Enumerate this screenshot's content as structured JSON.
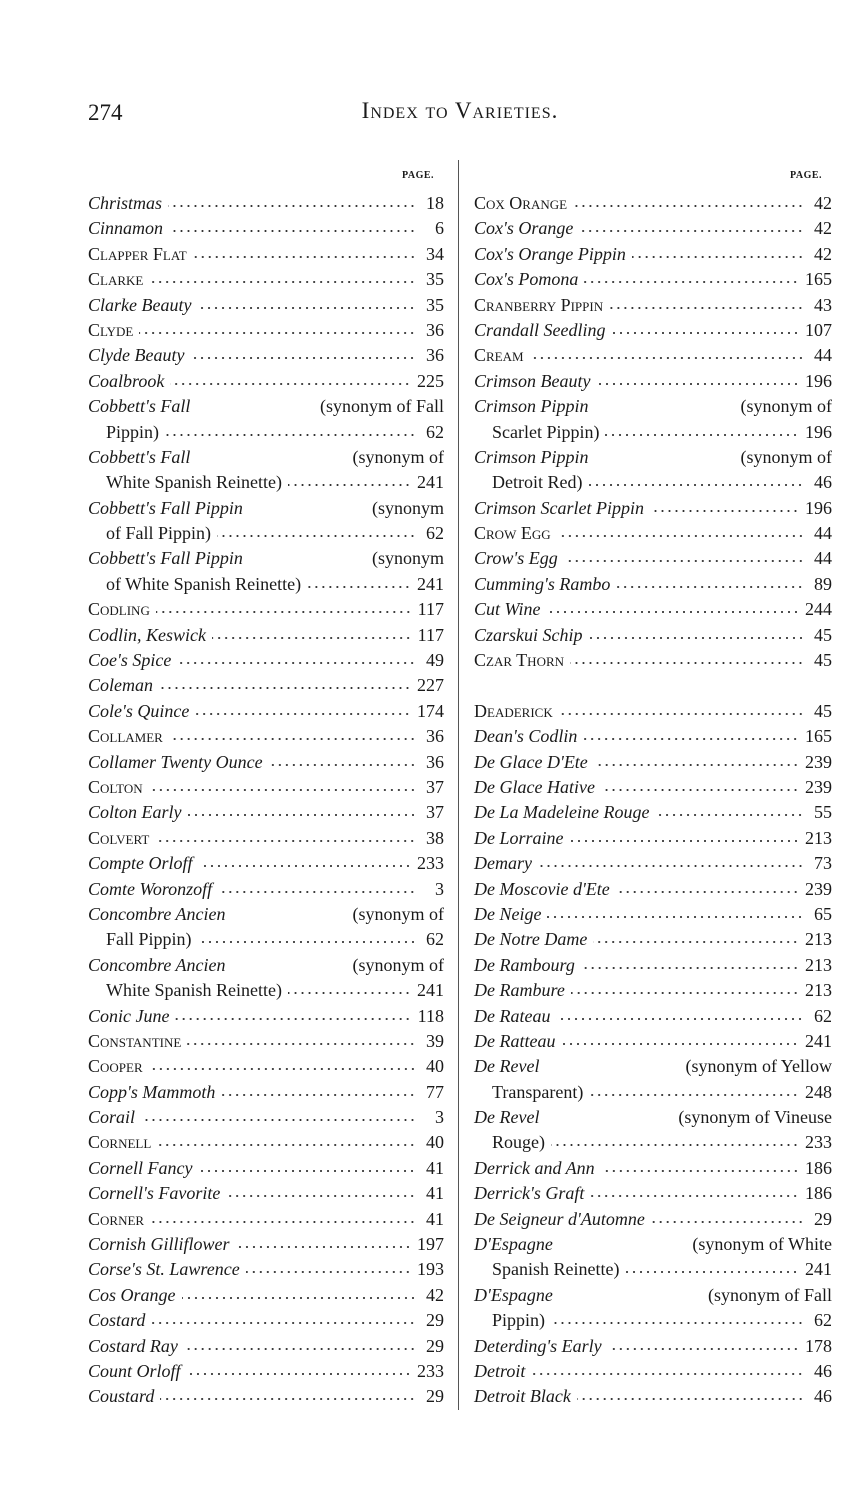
{
  "header": {
    "page_number": "274",
    "title": "Index to Varieties.",
    "page_label": "PAGE."
  },
  "columns": [
    {
      "groups": [
        [
          {
            "name": "Christmas",
            "style": "italic",
            "page": "18"
          },
          {
            "name": "Cinnamon",
            "style": "italic",
            "page": "6"
          },
          {
            "name": "Clapper Flat",
            "style": "caps",
            "page": "34"
          },
          {
            "name": "Clarke",
            "style": "caps",
            "page": "35"
          },
          {
            "name": "Clarke Beauty",
            "style": "italic",
            "page": "35"
          },
          {
            "name": "Clyde",
            "style": "caps",
            "page": "36"
          },
          {
            "name": "Clyde Beauty",
            "style": "italic",
            "page": "36"
          },
          {
            "name": "Coalbrook",
            "style": "italic",
            "page": "225"
          },
          {
            "name": "Cobbett's Fall",
            "style": "italic",
            "note": "(synonym of Fall",
            "cont": "Pippin)",
            "page": "62"
          },
          {
            "name": "Cobbett's Fall",
            "style": "italic",
            "note": "(synonym of",
            "cont": "White Spanish Reinette)",
            "page": "241"
          },
          {
            "name": "Cobbett's Fall Pippin",
            "style": "italic",
            "note": "(synonym",
            "cont": "of Fall Pippin)",
            "page": "62"
          },
          {
            "name": "Cobbett's Fall Pippin",
            "style": "italic",
            "note": "(synonym",
            "cont": "of White Spanish Reinette)",
            "page": "241"
          },
          {
            "name": "Codling",
            "style": "caps",
            "page": "117"
          },
          {
            "name": "Codlin, Keswick",
            "style": "italic",
            "page": "117"
          },
          {
            "name": "Coe's Spice",
            "style": "italic",
            "page": "49"
          },
          {
            "name": "Coleman",
            "style": "italic",
            "page": "227"
          },
          {
            "name": "Cole's Quince",
            "style": "italic",
            "page": "174"
          },
          {
            "name": "Collamer",
            "style": "caps",
            "page": "36"
          },
          {
            "name": "Collamer Twenty Ounce",
            "style": "italic",
            "page": "36"
          },
          {
            "name": "Colton",
            "style": "caps",
            "page": "37"
          },
          {
            "name": "Colton Early",
            "style": "italic",
            "page": "37"
          },
          {
            "name": "Colvert",
            "style": "caps",
            "page": "38"
          },
          {
            "name": "Compte Orloff",
            "style": "italic",
            "page": "233"
          },
          {
            "name": "Comte Woronzoff",
            "style": "italic",
            "page": "3"
          },
          {
            "name": "Concombre Ancien",
            "style": "italic",
            "note": "(synonym of",
            "cont": "Fall Pippin)",
            "page": "62"
          },
          {
            "name": "Concombre Ancien",
            "style": "italic",
            "note": "(synonym of",
            "cont": "White Spanish Reinette)",
            "page": "241"
          },
          {
            "name": "Conic June",
            "style": "italic",
            "page": "118"
          },
          {
            "name": "Constantine",
            "style": "caps",
            "page": "39"
          },
          {
            "name": "Cooper",
            "style": "caps",
            "page": "40"
          },
          {
            "name": "Copp's Mammoth",
            "style": "italic",
            "page": "77"
          },
          {
            "name": "Corail",
            "style": "italic",
            "page": "3"
          },
          {
            "name": "Cornell",
            "style": "caps",
            "page": "40"
          },
          {
            "name": "Cornell Fancy",
            "style": "italic",
            "page": "41"
          },
          {
            "name": "Cornell's Favorite",
            "style": "italic",
            "page": "41"
          },
          {
            "name": "Corner",
            "style": "caps",
            "page": "41"
          },
          {
            "name": "Cornish Gilliflower",
            "style": "italic",
            "page": "197"
          },
          {
            "name": "Corse's St. Lawrence",
            "style": "italic",
            "page": "193"
          },
          {
            "name": "Cos Orange",
            "style": "italic",
            "page": "42"
          },
          {
            "name": "Costard",
            "style": "italic",
            "page": "29"
          },
          {
            "name": "Costard Ray",
            "style": "italic",
            "page": "29"
          },
          {
            "name": "Count Orloff",
            "style": "italic",
            "page": "233"
          },
          {
            "name": "Coustard",
            "style": "italic",
            "page": "29"
          }
        ]
      ]
    },
    {
      "groups": [
        [
          {
            "name": "Cox Orange",
            "style": "caps",
            "page": "42"
          },
          {
            "name": "Cox's Orange",
            "style": "italic",
            "page": "42"
          },
          {
            "name": "Cox's Orange Pippin",
            "style": "italic",
            "page": "42"
          },
          {
            "name": "Cox's Pomona",
            "style": "italic",
            "page": "165"
          },
          {
            "name": "Cranberry Pippin",
            "style": "caps",
            "page": "43"
          },
          {
            "name": "Crandall Seedling",
            "style": "italic",
            "page": "107"
          },
          {
            "name": "Cream",
            "style": "caps",
            "page": "44"
          },
          {
            "name": "Crimson Beauty",
            "style": "italic",
            "page": "196"
          },
          {
            "name": "Crimson Pippin",
            "style": "italic",
            "note": "(synonym of",
            "cont": "Scarlet Pippin)",
            "page": "196"
          },
          {
            "name": "Crimson Pippin",
            "style": "italic",
            "note": "(synonym of",
            "cont": "Detroit Red)",
            "page": "46"
          },
          {
            "name": "Crimson Scarlet Pippin",
            "style": "italic",
            "page": "196"
          },
          {
            "name": "Crow Egg",
            "style": "caps",
            "page": "44"
          },
          {
            "name": "Crow's Egg",
            "style": "italic",
            "page": "44"
          },
          {
            "name": "Cumming's Rambo",
            "style": "italic",
            "page": "89"
          },
          {
            "name": "Cut Wine",
            "style": "italic",
            "page": "244"
          },
          {
            "name": "Czarskui Schip",
            "style": "italic",
            "page": "45"
          },
          {
            "name": "Czar Thorn",
            "style": "caps",
            "page": "45"
          }
        ],
        [
          {
            "name": "Deaderick",
            "style": "caps",
            "page": "45"
          },
          {
            "name": "Dean's Codlin",
            "style": "italic",
            "page": "165"
          },
          {
            "name": "De Glace D'Ete",
            "style": "italic",
            "page": "239"
          },
          {
            "name": "De Glace Hative",
            "style": "italic",
            "page": "239"
          },
          {
            "name": "De La Madeleine Rouge",
            "style": "italic",
            "page": "55"
          },
          {
            "name": "De Lorraine",
            "style": "italic",
            "page": "213"
          },
          {
            "name": "Demary",
            "style": "italic",
            "page": "73"
          },
          {
            "name": "De Moscovie d'Ete",
            "style": "italic",
            "page": "239"
          },
          {
            "name": "De Neige",
            "style": "italic",
            "page": "65"
          },
          {
            "name": "De Notre Dame",
            "style": "italic",
            "page": "213"
          },
          {
            "name": "De Rambourg",
            "style": "italic",
            "page": "213"
          },
          {
            "name": "De Rambure",
            "style": "italic",
            "page": "213"
          },
          {
            "name": "De Rateau",
            "style": "italic",
            "page": "62"
          },
          {
            "name": "De Ratteau",
            "style": "italic",
            "page": "241"
          },
          {
            "name": "De Revel",
            "style": "italic",
            "note": "(synonym of Yellow",
            "cont": "Transparent)",
            "page": "248"
          },
          {
            "name": "De Revel",
            "style": "italic",
            "note": "(synonym of Vineuse",
            "cont": "Rouge)",
            "page": "233"
          },
          {
            "name": "Derrick and Ann",
            "style": "italic",
            "page": "186"
          },
          {
            "name": "Derrick's Graft",
            "style": "italic",
            "page": "186"
          },
          {
            "name": "De Seigneur d'Automne",
            "style": "italic",
            "page": "29"
          },
          {
            "name": "D'Espagne",
            "style": "italic",
            "note": "(synonym of White",
            "cont": "Spanish Reinette)",
            "page": "241"
          },
          {
            "name": "D'Espagne",
            "style": "italic",
            "note": "(synonym of Fall",
            "cont": "Pippin)",
            "page": "62"
          },
          {
            "name": "Deterding's Early",
            "style": "italic",
            "page": "178"
          },
          {
            "name": "Detroit",
            "style": "italic",
            "page": "46"
          },
          {
            "name": "Detroit Black",
            "style": "italic",
            "page": "46"
          }
        ]
      ]
    }
  ]
}
